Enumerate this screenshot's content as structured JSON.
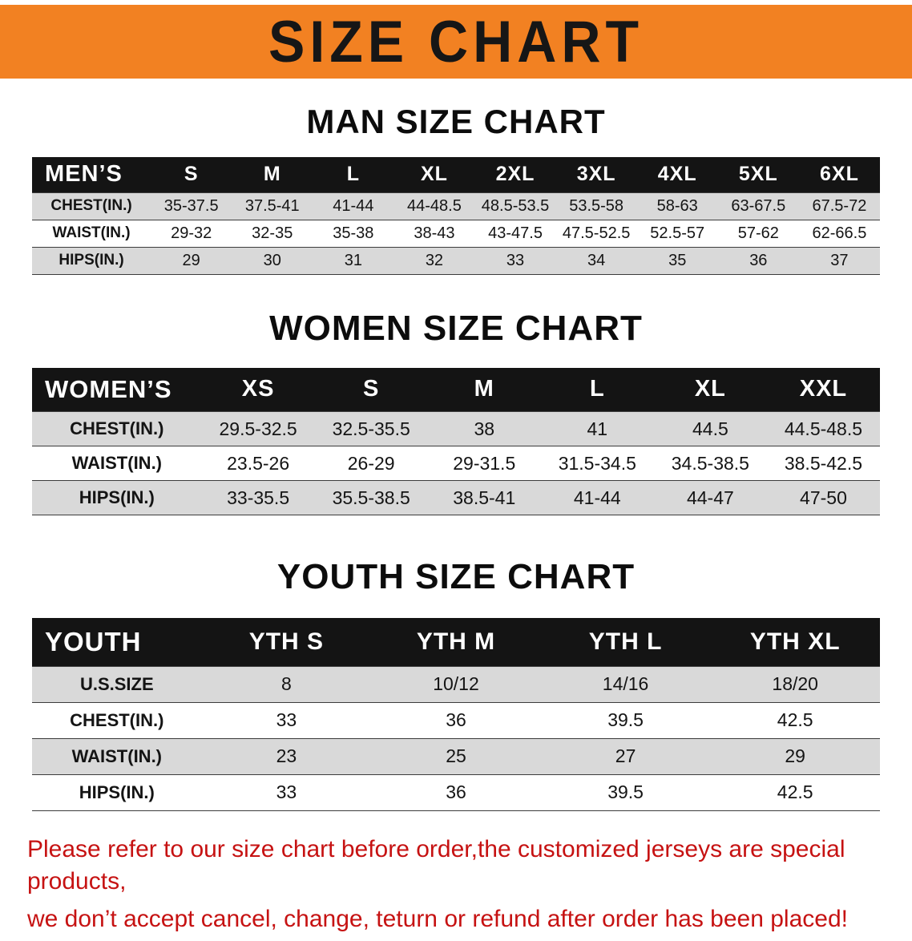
{
  "banner": {
    "title": "SIZE CHART",
    "bg_color": "#F28122"
  },
  "sections": [
    {
      "id": "men",
      "heading": "MAN SIZE CHART",
      "table": {
        "header": [
          "MEN’S",
          "S",
          "M",
          "L",
          "XL",
          "2XL",
          "3XL",
          "4XL",
          "5XL",
          "6XL"
        ],
        "rows": [
          [
            "CHEST(IN.)",
            "35-37.5",
            "37.5-41",
            "41-44",
            "44-48.5",
            "48.5-53.5",
            "53.5-58",
            "58-63",
            "63-67.5",
            "67.5-72"
          ],
          [
            "WAIST(IN.)",
            "29-32",
            "32-35",
            "35-38",
            "38-43",
            "43-47.5",
            "47.5-52.5",
            "52.5-57",
            "57-62",
            "62-66.5"
          ],
          [
            "HIPS(IN.)",
            "29",
            "30",
            "31",
            "32",
            "33",
            "34",
            "35",
            "36",
            "37"
          ]
        ]
      }
    },
    {
      "id": "women",
      "heading": "WOMEN SIZE CHART",
      "table": {
        "header": [
          "WOMEN’S",
          "XS",
          "S",
          "M",
          "L",
          "XL",
          "XXL"
        ],
        "rows": [
          [
            "CHEST(IN.)",
            "29.5-32.5",
            "32.5-35.5",
            "38",
            "41",
            "44.5",
            "44.5-48.5"
          ],
          [
            "WAIST(IN.)",
            "23.5-26",
            "26-29",
            "29-31.5",
            "31.5-34.5",
            "34.5-38.5",
            "38.5-42.5"
          ],
          [
            "HIPS(IN.)",
            "33-35.5",
            "35.5-38.5",
            "38.5-41",
            "41-44",
            "44-47",
            "47-50"
          ]
        ]
      }
    },
    {
      "id": "youth",
      "heading": "YOUTH SIZE CHART",
      "table": {
        "header": [
          "YOUTH",
          "YTH S",
          "YTH M",
          "YTH L",
          "YTH XL"
        ],
        "rows": [
          [
            "U.S.SIZE",
            "8",
            "10/12",
            "14/16",
            "18/20"
          ],
          [
            "CHEST(IN.)",
            "33",
            "36",
            "39.5",
            "42.5"
          ],
          [
            "WAIST(IN.)",
            "23",
            "25",
            "27",
            "29"
          ],
          [
            "HIPS(IN.)",
            "33",
            "36",
            "39.5",
            "42.5"
          ]
        ]
      }
    }
  ],
  "disclaimer": {
    "line1": "Please refer to our size chart before order,the customized jerseys are special products,",
    "line2": "we don’t accept cancel, change, teturn or refund after order has been placed!",
    "color": "#C61212"
  }
}
